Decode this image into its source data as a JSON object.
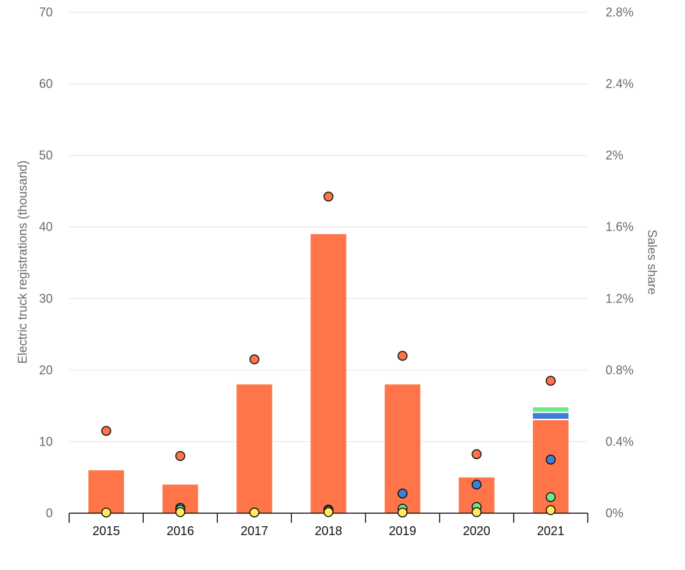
{
  "chart_data": {
    "type": "bar",
    "categories": [
      "2015",
      "2016",
      "2017",
      "2018",
      "2019",
      "2020",
      "2021"
    ],
    "bar_series": [
      {
        "color": "#ff7549",
        "values": [
          6,
          4,
          18,
          39,
          18,
          5,
          13
        ]
      },
      {
        "color": "#3f7fd6",
        "values": [
          0,
          0,
          0,
          0,
          0,
          0,
          1
        ]
      },
      {
        "color": "#6bea8e",
        "values": [
          0,
          0,
          0,
          0,
          0,
          0,
          0.8
        ]
      }
    ],
    "share_series": [
      {
        "color": "#ff7549",
        "values": [
          0.46,
          0.32,
          0.86,
          1.77,
          0.88,
          0.33,
          0.74
        ]
      },
      {
        "color": "#3f7fd6",
        "values": [
          null,
          0.03,
          null,
          0.02,
          0.11,
          0.16,
          0.3
        ]
      },
      {
        "color": "#6bea8e",
        "values": [
          null,
          0.02,
          null,
          0.015,
          0.025,
          0.035,
          0.09
        ]
      },
      {
        "color": "#ffeb5c",
        "values": [
          0.004,
          0.006,
          0.004,
          0.006,
          0.004,
          0.006,
          0.017
        ]
      }
    ],
    "ylabel": "Electric truck registrations (thousand)",
    "y2label": "Sales share",
    "ylim": [
      0,
      70
    ],
    "y_ticks": [
      "0",
      "10",
      "20",
      "30",
      "40",
      "50",
      "60",
      "70"
    ],
    "y2lim": [
      0,
      2.8
    ],
    "y2_ticks": [
      "0%",
      "0.4%",
      "0.8%",
      "1.2%",
      "1.6%",
      "2%",
      "2.4%",
      "2.8%"
    ],
    "grid": true
  }
}
